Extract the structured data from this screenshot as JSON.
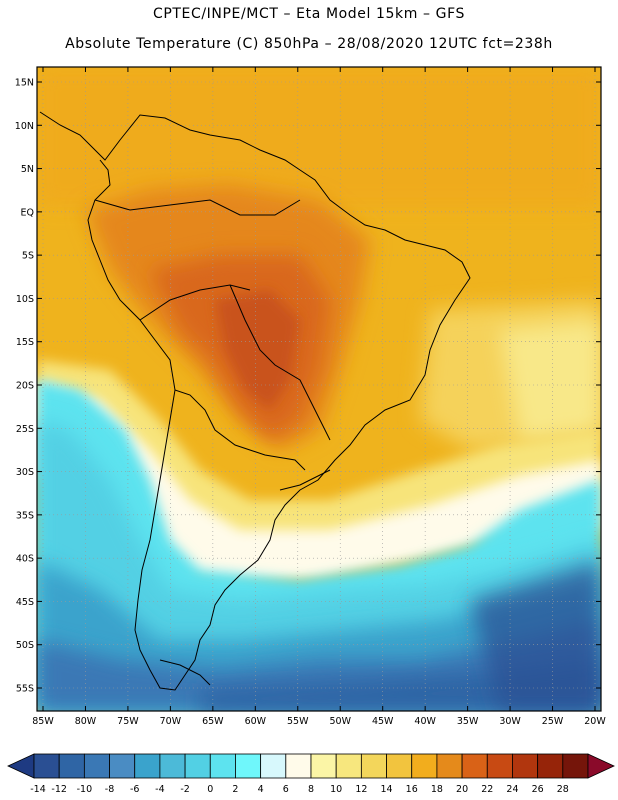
{
  "header": {
    "line1": "CPTEC/INPE/MCT –  Eta Model 15km – GFS",
    "line2": "Absolute Temperature (C) 850hPa – 28/08/2020 12UTC fct=238h"
  },
  "map": {
    "region": "South America",
    "lat_ticks": [
      {
        "value": 15,
        "label": "15N"
      },
      {
        "value": 10,
        "label": "10N"
      },
      {
        "value": 5,
        "label": "5N"
      },
      {
        "value": 0,
        "label": "EQ"
      },
      {
        "value": -5,
        "label": "5S"
      },
      {
        "value": -10,
        "label": "10S"
      },
      {
        "value": -15,
        "label": "15S"
      },
      {
        "value": -20,
        "label": "20S"
      },
      {
        "value": -25,
        "label": "25S"
      },
      {
        "value": -30,
        "label": "30S"
      },
      {
        "value": -35,
        "label": "35S"
      },
      {
        "value": -40,
        "label": "40S"
      },
      {
        "value": -45,
        "label": "45S"
      },
      {
        "value": -50,
        "label": "50S"
      },
      {
        "value": -55,
        "label": "55S"
      }
    ],
    "lon_ticks": [
      {
        "value": -85,
        "label": "85W"
      },
      {
        "value": -80,
        "label": "80W"
      },
      {
        "value": -75,
        "label": "75W"
      },
      {
        "value": -70,
        "label": "70W"
      },
      {
        "value": -65,
        "label": "65W"
      },
      {
        "value": -60,
        "label": "60W"
      },
      {
        "value": -55,
        "label": "55W"
      },
      {
        "value": -50,
        "label": "50W"
      },
      {
        "value": -45,
        "label": "45W"
      },
      {
        "value": -40,
        "label": "40W"
      },
      {
        "value": -35,
        "label": "35W"
      },
      {
        "value": -30,
        "label": "30W"
      },
      {
        "value": -25,
        "label": "25W"
      },
      {
        "value": -20,
        "label": "20W"
      }
    ]
  },
  "colorbar": {
    "labels": [
      "-14",
      "-12",
      "-10",
      "-8",
      "-6",
      "-4",
      "-2",
      "0",
      "2",
      "4",
      "6",
      "8",
      "10",
      "12",
      "14",
      "16",
      "18",
      "20",
      "22",
      "24",
      "26",
      "28"
    ],
    "colors": [
      "#2a4f93",
      "#2f65a5",
      "#3a78b5",
      "#4a8cc3",
      "#3aa3cc",
      "#4cbad8",
      "#52d0e4",
      "#5de3ef",
      "#6ff7fb",
      "#d7f8fc",
      "#fffbea",
      "#fbf5a6",
      "#f7e77e",
      "#f3d65b",
      "#f2c43e",
      "#f2ad1d",
      "#e58a1b",
      "#d96217",
      "#c84a13",
      "#b1360e",
      "#962409",
      "#75150a"
    ],
    "under_color": "#1e3a82",
    "over_color": "#8a0a2a"
  }
}
